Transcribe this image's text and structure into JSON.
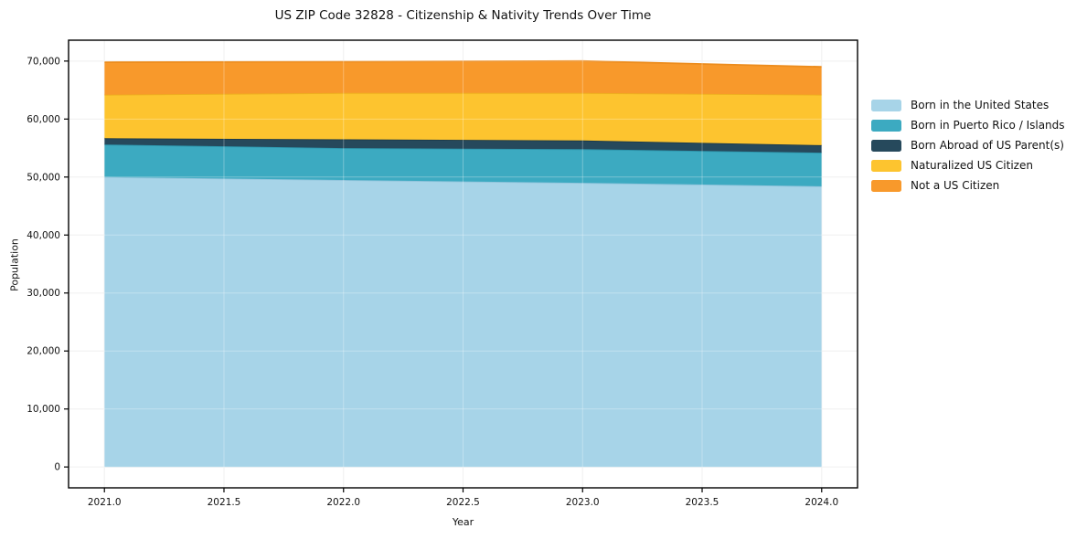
{
  "chart_data": {
    "type": "area",
    "stacked": true,
    "title": "US ZIP Code 32828 - Citizenship & Nativity Trends Over Time",
    "xlabel": "Year",
    "ylabel": "Population",
    "x": [
      2021,
      2022,
      2023,
      2024
    ],
    "series": [
      {
        "name": "Born in the United States",
        "values": [
          50000,
          49500,
          49000,
          48400
        ],
        "color": "#a7d4e8",
        "edge_color": "#8fc3db"
      },
      {
        "name": "Born in Puerto Rico / Islands",
        "values": [
          5600,
          5500,
          5800,
          5800
        ],
        "color": "#3caac1",
        "edge_color": "#2d96ad"
      },
      {
        "name": "Born Abroad of US Parent(s)",
        "values": [
          1100,
          1500,
          1500,
          1300
        ],
        "color": "#26495c",
        "edge_color": "#1c3a4a"
      },
      {
        "name": "Naturalized US Citizen",
        "values": [
          7500,
          8000,
          8200,
          8700
        ],
        "color": "#fdc42f",
        "edge_color": "#eeb01e"
      },
      {
        "name": "Not a US Citizen",
        "values": [
          5600,
          5400,
          5500,
          4800
        ],
        "color": "#f8992b",
        "edge_color": "#ec8c1d"
      }
    ],
    "x_ticks": {
      "values": [
        2021.0,
        2021.5,
        2022.0,
        2022.5,
        2023.0,
        2023.5,
        2024.0
      ],
      "labels": [
        "2021.0",
        "2021.5",
        "2022.0",
        "2022.5",
        "2023.0",
        "2023.5",
        "2024.0"
      ]
    },
    "y_ticks": {
      "values": [
        0,
        10000,
        20000,
        30000,
        40000,
        50000,
        60000,
        70000
      ],
      "labels": [
        "0",
        "10,000",
        "20,000",
        "30,000",
        "40,000",
        "50,000",
        "60,000",
        "70,000"
      ]
    },
    "x_range": [
      2020.85,
      2024.15
    ],
    "y_range": [
      -3600,
      73600
    ],
    "ylim_labeled": [
      0,
      70000
    ],
    "grid": true,
    "grid_color": "#ebebeb",
    "grid_overlay_color": "rgba(255,255,255,0.3)",
    "axis_color": "#000000",
    "text_color": "#111111",
    "legend_position": "outside-right"
  }
}
